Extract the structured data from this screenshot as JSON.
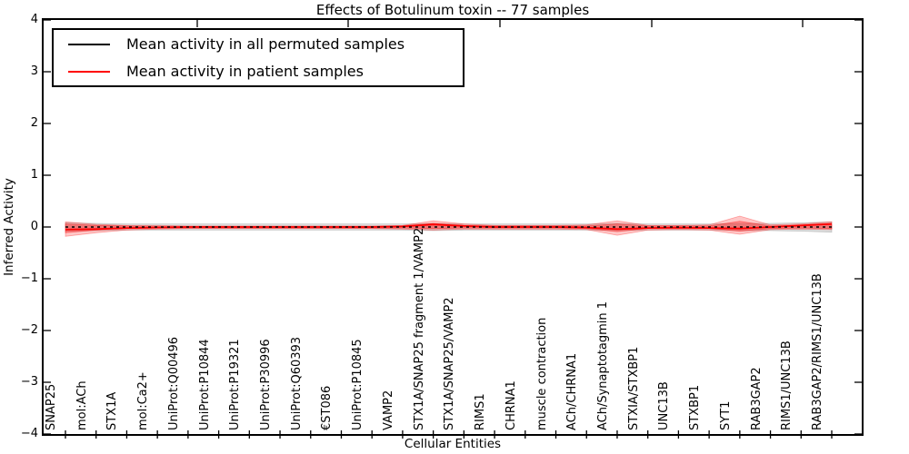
{
  "figure": {
    "background": "#ffffff"
  },
  "chart_data": {
    "type": "line",
    "title": "Effects of Botulinum toxin -- 77 samples",
    "xlabel": "Cellular Entities",
    "ylabel": "Inferred Activity",
    "ylim": [
      -4,
      4
    ],
    "ytick_labels": [
      "4",
      "3",
      "2",
      "1",
      "0",
      "−1",
      "−2",
      "−3",
      "−4"
    ],
    "grid": false,
    "legend_position": "upper left",
    "categories": [
      "SNAP25",
      "mol:ACh",
      "STX1A",
      "mol:Ca2+",
      "UniProt:Q00496",
      "UniProt:P10844",
      "UniProt:P19321",
      "UniProt:P30996",
      "UniProt:Q60393",
      "€ST086",
      "UniProt:P10845",
      "VAMP2",
      "STX1A/SNAP25 fragment 1/VAMP2",
      "STX1A/SNAP25/VAMP2",
      "RIMS1",
      "CHRNA1",
      "muscle contraction",
      "ACh/CHRNA1",
      "ACh/Synaptotagmin 1",
      "STXIA/STXBP1",
      "UNC13B",
      "STXBP1",
      "SYT1",
      "RAB3GAP2",
      "RIMS1/UNC13B",
      "RAB3GAP2/RIMS1/UNC13B"
    ],
    "series": [
      {
        "name": "Mean activity in all permuted samples",
        "color": "#000000",
        "line_style": "dashed",
        "values": [
          0,
          0,
          0,
          0,
          0,
          0,
          0,
          0,
          0,
          0,
          0,
          0,
          0,
          0,
          0,
          0,
          0,
          0,
          0,
          0,
          0,
          0,
          0,
          0,
          0,
          0
        ]
      },
      {
        "name": "Mean activity in patient samples",
        "color": "#ff0000",
        "line_style": "solid",
        "values": [
          -0.05,
          -0.04,
          -0.02,
          -0.01,
          0,
          0,
          0,
          0,
          0,
          0,
          0,
          0.01,
          0.05,
          0.02,
          0,
          0,
          0,
          -0.01,
          -0.04,
          -0.02,
          -0.01,
          -0.02,
          -0.03,
          0,
          0.03,
          0.06
        ]
      }
    ],
    "bands": [
      {
        "name": "permuted-samples-range",
        "color": "#999999",
        "opacity": 0.35,
        "upper": [
          0.08,
          0.07,
          0.06,
          0.06,
          0.06,
          0.06,
          0.06,
          0.06,
          0.06,
          0.06,
          0.06,
          0.06,
          0.07,
          0.06,
          0.06,
          0.06,
          0.06,
          0.06,
          0.07,
          0.06,
          0.06,
          0.06,
          0.07,
          0.07,
          0.08,
          0.1
        ],
        "lower": [
          -0.08,
          -0.07,
          -0.06,
          -0.06,
          -0.06,
          -0.06,
          -0.06,
          -0.06,
          -0.06,
          -0.06,
          -0.06,
          -0.06,
          -0.07,
          -0.06,
          -0.06,
          -0.06,
          -0.06,
          -0.06,
          -0.07,
          -0.06,
          -0.06,
          -0.06,
          -0.07,
          -0.07,
          -0.08,
          -0.1
        ]
      },
      {
        "name": "patient-samples-range-outer",
        "color": "#ff0000",
        "opacity": 0.22,
        "upper": [
          0.1,
          0.05,
          0.03,
          0.03,
          0.02,
          0.02,
          0.02,
          0.02,
          0.02,
          0.02,
          0.02,
          0.03,
          0.12,
          0.06,
          0.03,
          0.03,
          0.03,
          0.04,
          0.12,
          0.03,
          0.03,
          0.04,
          0.21,
          0.04,
          0.06,
          0.1
        ],
        "lower": [
          -0.18,
          -0.11,
          -0.06,
          -0.04,
          -0.03,
          -0.03,
          -0.03,
          -0.03,
          -0.03,
          -0.03,
          -0.03,
          -0.04,
          -0.06,
          -0.04,
          -0.04,
          -0.04,
          -0.04,
          -0.05,
          -0.16,
          -0.06,
          -0.05,
          -0.06,
          -0.14,
          -0.05,
          -0.04,
          -0.05
        ]
      },
      {
        "name": "patient-samples-range-inner",
        "color": "#ff0000",
        "opacity": 0.3,
        "upper": [
          0.06,
          0.03,
          0.02,
          0.01,
          0.01,
          0.01,
          0.01,
          0.01,
          0.01,
          0.01,
          0.01,
          0.02,
          0.07,
          0.03,
          0.02,
          0.02,
          0.02,
          0.02,
          0.06,
          0.02,
          0.02,
          0.02,
          0.11,
          0.02,
          0.03,
          0.05
        ],
        "lower": [
          -0.11,
          -0.06,
          -0.03,
          -0.02,
          -0.02,
          -0.02,
          -0.02,
          -0.02,
          -0.02,
          -0.02,
          -0.02,
          -0.02,
          -0.03,
          -0.02,
          -0.02,
          -0.02,
          -0.02,
          -0.03,
          -0.09,
          -0.03,
          -0.03,
          -0.03,
          -0.08,
          -0.03,
          -0.02,
          -0.03
        ]
      }
    ]
  }
}
